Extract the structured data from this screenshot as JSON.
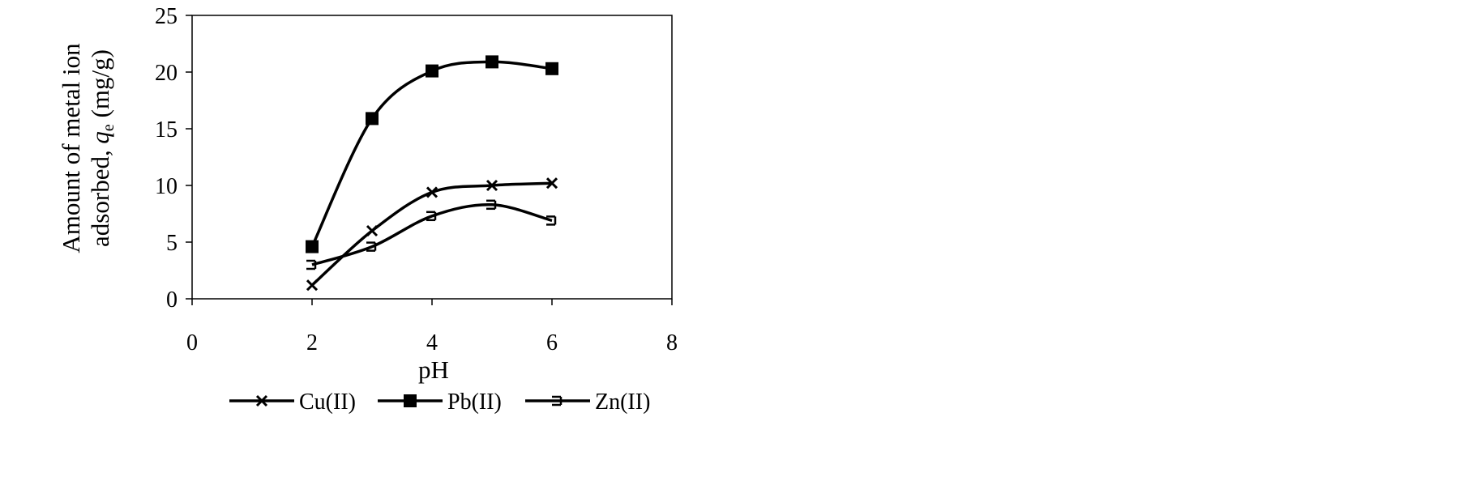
{
  "chart_data": {
    "type": "line",
    "xlabel": "pH",
    "ylabel_line1": "Amount of metal  ion",
    "ylabel_line2_prefix": "adsorbed,",
    "ylabel_q": "q",
    "ylabel_sub": "e",
    "ylabel_unit": "(mg/g)",
    "xlim": [
      0,
      8
    ],
    "ylim": [
      0,
      25
    ],
    "xticks": [
      0,
      2,
      4,
      6,
      8
    ],
    "yticks": [
      0,
      5,
      10,
      15,
      20,
      25
    ],
    "grid": false,
    "legend_position": "bottom",
    "x": [
      2,
      3,
      4,
      5,
      6
    ],
    "series": [
      {
        "name": "Cu(II)",
        "marker": "x",
        "values": [
          1.2,
          6.0,
          9.4,
          10.0,
          10.2
        ]
      },
      {
        "name": "Pb(II)",
        "marker": "square",
        "values": [
          4.6,
          15.9,
          20.1,
          20.9,
          20.3
        ]
      },
      {
        "name": "Zn(II)",
        "marker": "dash",
        "values": [
          3.0,
          4.6,
          7.3,
          8.3,
          6.9
        ]
      }
    ],
    "line_color": "#000000"
  }
}
